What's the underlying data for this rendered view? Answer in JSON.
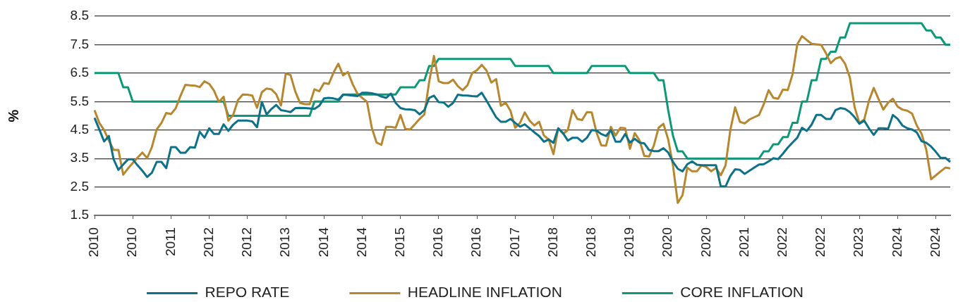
{
  "chart_data": {
    "type": "line",
    "ylabel": "%",
    "categories": [
      "2010",
      null,
      null,
      null,
      null,
      null,
      null,
      null,
      "2010",
      null,
      null,
      null,
      null,
      null,
      null,
      null,
      "2011",
      null,
      null,
      null,
      null,
      null,
      null,
      null,
      "2012",
      null,
      null,
      null,
      null,
      null,
      null,
      null,
      "2012",
      null,
      null,
      null,
      null,
      null,
      null,
      null,
      "2013",
      null,
      null,
      null,
      null,
      null,
      null,
      null,
      "2014",
      null,
      null,
      null,
      null,
      null,
      null,
      null,
      "2014",
      null,
      null,
      null,
      null,
      null,
      null,
      null,
      "2015",
      null,
      null,
      null,
      null,
      null,
      null,
      null,
      "2016",
      null,
      null,
      null,
      null,
      null,
      null,
      null,
      "2016",
      null,
      null,
      null,
      null,
      null,
      null,
      null,
      "2017",
      null,
      null,
      null,
      null,
      null,
      null,
      null,
      "2018",
      null,
      null,
      null,
      null,
      null,
      null,
      null,
      "2018",
      null,
      null,
      null,
      null,
      null,
      null,
      null,
      "2019",
      null,
      null,
      null,
      null,
      null,
      null,
      null,
      "2020",
      null,
      null,
      null,
      null,
      null,
      null,
      null,
      "2020",
      null,
      null,
      null,
      null,
      null,
      null,
      null,
      "2021",
      null,
      null,
      null,
      null,
      null,
      null,
      null,
      "2022",
      null,
      null,
      null,
      null,
      null,
      null,
      null,
      "2022",
      null,
      null,
      null,
      null,
      null,
      null,
      null,
      "2023",
      null,
      null,
      null,
      null,
      null,
      null,
      null,
      "2024",
      null,
      null,
      null,
      null,
      null,
      null,
      null,
      "2024",
      null,
      null,
      null
    ],
    "series": [
      {
        "name": "REPO RATE",
        "color": "#0d7289",
        "values": [
          4.93,
          4.52,
          4.1,
          4.29,
          3.47,
          3.1,
          3.29,
          3.47,
          3.47,
          3.26,
          3.07,
          2.85,
          3.0,
          3.38,
          3.38,
          3.16,
          3.9,
          3.9,
          3.7,
          3.7,
          3.9,
          3.88,
          4.44,
          4.23,
          4.56,
          4.36,
          4.36,
          4.7,
          4.47,
          4.69,
          4.83,
          4.83,
          4.83,
          4.8,
          4.6,
          5.49,
          5.05,
          5.24,
          5.38,
          5.2,
          5.17,
          5.13,
          5.27,
          5.28,
          5.27,
          5.26,
          5.24,
          5.35,
          5.61,
          5.63,
          5.61,
          5.57,
          5.74,
          5.73,
          5.71,
          5.69,
          5.81,
          5.81,
          5.79,
          5.75,
          5.68,
          5.63,
          5.78,
          5.45,
          5.27,
          5.23,
          5.22,
          5.2,
          5.05,
          5.2,
          5.63,
          5.71,
          5.48,
          5.47,
          5.32,
          5.45,
          5.74,
          5.72,
          5.71,
          5.69,
          5.68,
          5.81,
          5.53,
          5.24,
          4.95,
          4.79,
          4.79,
          4.89,
          4.75,
          4.62,
          4.7,
          4.56,
          4.42,
          4.29,
          4.09,
          4.17,
          4.05,
          4.56,
          4.39,
          4.13,
          4.23,
          4.23,
          4.09,
          4.23,
          4.5,
          4.48,
          4.36,
          4.29,
          4.5,
          4.09,
          4.09,
          4.36,
          4.06,
          4.19,
          4.06,
          4.03,
          3.8,
          3.76,
          3.76,
          3.86,
          3.71,
          3.38,
          3.14,
          3.05,
          3.3,
          3.4,
          3.28,
          3.26,
          3.26,
          3.26,
          3.26,
          2.52,
          2.52,
          2.89,
          3.12,
          3.1,
          2.96,
          3.07,
          3.18,
          3.29,
          3.3,
          3.4,
          3.51,
          3.48,
          3.67,
          3.88,
          4.06,
          4.23,
          4.58,
          4.47,
          4.69,
          5.03,
          5.03,
          4.89,
          4.89,
          5.2,
          5.27,
          5.24,
          5.13,
          4.95,
          4.72,
          4.83,
          4.56,
          4.33,
          4.56,
          4.56,
          4.54,
          5.03,
          4.89,
          4.66,
          4.56,
          4.52,
          4.42,
          4.11,
          4.05,
          3.92,
          3.73,
          3.52,
          3.52,
          3.38
        ]
      },
      {
        "name": "HEADLINE INFLATION",
        "color": "#b7872f",
        "values": [
          5.2,
          4.75,
          4.5,
          4.13,
          3.8,
          3.8,
          2.93,
          3.15,
          3.34,
          3.53,
          3.71,
          3.51,
          3.9,
          4.52,
          4.75,
          5.1,
          5.06,
          5.27,
          5.71,
          6.09,
          6.07,
          6.06,
          6.01,
          6.21,
          6.12,
          5.88,
          5.49,
          5.67,
          4.83,
          5.03,
          5.55,
          5.75,
          5.74,
          5.71,
          5.28,
          5.83,
          5.96,
          5.93,
          5.76,
          5.36,
          6.48,
          6.43,
          5.85,
          5.45,
          5.41,
          5.41,
          5.93,
          5.86,
          6.15,
          6.12,
          6.52,
          6.83,
          6.42,
          6.54,
          6.11,
          5.78,
          5.63,
          5.49,
          4.58,
          4.06,
          3.98,
          4.61,
          4.61,
          4.58,
          5.03,
          4.54,
          4.52,
          4.7,
          4.89,
          5.05,
          6.19,
          7.1,
          6.21,
          6.15,
          6.15,
          6.27,
          6.04,
          5.9,
          6.07,
          6.5,
          6.6,
          6.79,
          6.59,
          6.17,
          6.29,
          5.35,
          5.46,
          5.18,
          4.58,
          4.75,
          5.12,
          4.83,
          4.66,
          4.79,
          4.31,
          4.17,
          3.65,
          4.56,
          4.37,
          4.5,
          5.2,
          4.89,
          4.85,
          5.13,
          5.12,
          4.42,
          3.96,
          3.95,
          4.61,
          4.31,
          4.58,
          4.56,
          3.84,
          4.39,
          4.14,
          3.59,
          3.57,
          3.96,
          4.58,
          4.72,
          4.17,
          3.26,
          1.94,
          2.21,
          3.18,
          3.05,
          3.05,
          3.26,
          3.2,
          3.05,
          3.17,
          2.91,
          3.26,
          4.5,
          5.3,
          4.79,
          4.73,
          4.87,
          4.95,
          5.03,
          5.41,
          5.9,
          5.63,
          5.6,
          5.92,
          5.9,
          6.45,
          7.51,
          7.8,
          7.66,
          7.53,
          7.51,
          7.49,
          7.2,
          6.85,
          7.01,
          7.07,
          6.83,
          6.35,
          5.3,
          4.75,
          4.87,
          5.53,
          5.98,
          5.59,
          5.22,
          5.46,
          5.6,
          5.32,
          5.22,
          5.18,
          5.08,
          4.66,
          4.37,
          3.8,
          2.77,
          2.91,
          3.05,
          3.18,
          3.15
        ]
      },
      {
        "name": "CORE INFLATION",
        "color": "#0f9878",
        "values": [
          6.5,
          6.5,
          6.5,
          6.5,
          6.5,
          6.5,
          6,
          6,
          5.5,
          5.5,
          5.5,
          5.5,
          5.5,
          5.5,
          5.5,
          5.5,
          5.5,
          5.5,
          5.5,
          5.5,
          5.5,
          5.5,
          5.5,
          5.5,
          5.5,
          5.5,
          5.5,
          5.5,
          5,
          5,
          5,
          5,
          5,
          5,
          5,
          5,
          5,
          5,
          5,
          5,
          5,
          5,
          5,
          5,
          5,
          5,
          5.5,
          5.5,
          5.5,
          5.5,
          5.5,
          5.5,
          5.75,
          5.75,
          5.75,
          5.75,
          5.75,
          5.75,
          5.75,
          5.75,
          5.75,
          5.75,
          5.75,
          5.75,
          6,
          6,
          6,
          6,
          6.25,
          6.25,
          6.75,
          6.75,
          7,
          7,
          7,
          7,
          7,
          7,
          7,
          7,
          7,
          7,
          7,
          7,
          7,
          7,
          7,
          7,
          6.75,
          6.75,
          6.75,
          6.75,
          6.75,
          6.75,
          6.75,
          6.75,
          6.5,
          6.5,
          6.5,
          6.5,
          6.5,
          6.5,
          6.5,
          6.5,
          6.75,
          6.75,
          6.75,
          6.75,
          6.75,
          6.75,
          6.75,
          6.75,
          6.5,
          6.5,
          6.5,
          6.5,
          6.5,
          6.5,
          6.25,
          6.25,
          5.2,
          4.3,
          3.75,
          3.75,
          3.5,
          3.5,
          3.5,
          3.5,
          3.5,
          3.5,
          3.5,
          3.5,
          3.5,
          3.5,
          3.5,
          3.5,
          3.5,
          3.5,
          3.5,
          3.5,
          3.75,
          3.75,
          4,
          4,
          4.25,
          4.25,
          4.75,
          4.75,
          5.5,
          5.5,
          6.25,
          6.25,
          7,
          7,
          7.25,
          7.25,
          7.75,
          7.75,
          8.25,
          8.25,
          8.25,
          8.25,
          8.25,
          8.25,
          8.25,
          8.25,
          8.25,
          8.25,
          8.25,
          8.25,
          8.25,
          8.25,
          8.25,
          8.25,
          8,
          8,
          7.75,
          7.75,
          7.5,
          7.5
        ]
      }
    ],
    "ylim": [
      1.5,
      8.5
    ],
    "yticks": [
      1.5,
      2.5,
      3.5,
      4.5,
      5.5,
      6.5,
      7.5,
      8.5
    ],
    "grid": "y",
    "legend": "bottom"
  }
}
